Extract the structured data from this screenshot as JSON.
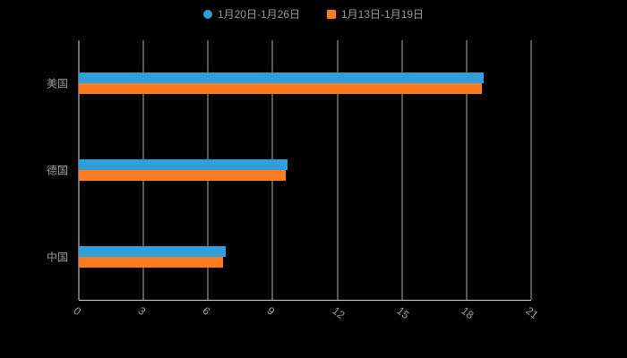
{
  "chart_data": {
    "type": "bar",
    "orientation": "horizontal",
    "title": "",
    "categories": [
      "美国",
      "德国",
      "中国"
    ],
    "series": [
      {
        "name": "1月20日-1月26日",
        "color": "#2E9FDA",
        "marker": "circle",
        "values": [
          18.8,
          9.7,
          6.8
        ]
      },
      {
        "name": "1月13日-1月19日",
        "color": "#FB7B21",
        "marker": "rect",
        "values": [
          18.7,
          9.6,
          6.7
        ]
      }
    ],
    "x_ticks": [
      0,
      3,
      6,
      9,
      12,
      15,
      18,
      21
    ],
    "xlim": [
      0,
      21
    ],
    "legend_position": "top",
    "grid": true
  },
  "colors": {
    "background": "#000000",
    "gridline": "#aeaeae",
    "axis_line": "#cfcfcf",
    "text": "#999999"
  }
}
